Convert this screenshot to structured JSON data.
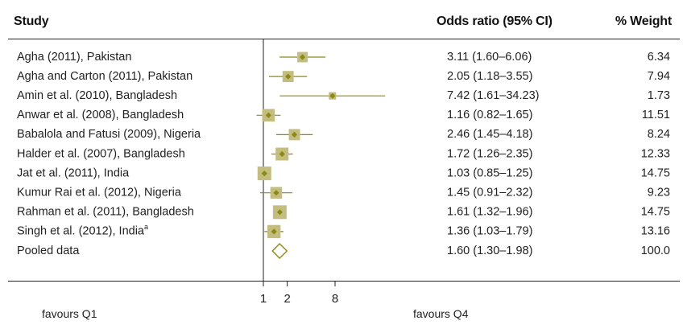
{
  "chart_data": {
    "type": "forest",
    "columns": {
      "study": "Study",
      "or": "Odds ratio (95% CI)",
      "weight": "% Weight"
    },
    "scale": "log",
    "xlim": [
      0.75,
      40
    ],
    "ticks": [
      1,
      2,
      8
    ],
    "tick_labels": [
      "1",
      "2",
      "8"
    ],
    "studies": [
      {
        "label": "Agha (2011), Pakistan",
        "or": 3.11,
        "lo": 1.6,
        "hi": 6.06,
        "ci_text": "3.11 (1.60–6.06)",
        "weight": 6.34,
        "weight_text": "6.34"
      },
      {
        "label": "Agha and Carton (2011), Pakistan",
        "or": 2.05,
        "lo": 1.18,
        "hi": 3.55,
        "ci_text": "2.05 (1.18–3.55)",
        "weight": 7.94,
        "weight_text": "7.94"
      },
      {
        "label": "Amin et al. (2010), Bangladesh",
        "or": 7.42,
        "lo": 1.61,
        "hi": 34.23,
        "ci_text": "7.42 (1.61–34.23)",
        "weight": 1.73,
        "weight_text": "1.73"
      },
      {
        "label": "Anwar et al. (2008), Bangladesh",
        "or": 1.16,
        "lo": 0.82,
        "hi": 1.65,
        "ci_text": "1.16 (0.82–1.65)",
        "weight": 11.51,
        "weight_text": "11.51"
      },
      {
        "label": "Babalola and Fatusi (2009), Nigeria",
        "or": 2.46,
        "lo": 1.45,
        "hi": 4.18,
        "ci_text": "2.46 (1.45–4.18)",
        "weight": 8.24,
        "weight_text": "8.24"
      },
      {
        "label": "Halder et al. (2007), Bangladesh",
        "or": 1.72,
        "lo": 1.26,
        "hi": 2.35,
        "ci_text": "1.72 (1.26–2.35)",
        "weight": 12.33,
        "weight_text": "12.33"
      },
      {
        "label": "Jat et al. (2011), India",
        "or": 1.03,
        "lo": 0.85,
        "hi": 1.25,
        "ci_text": "1.03 (0.85–1.25)",
        "weight": 14.75,
        "weight_text": "14.75"
      },
      {
        "label": "Kumur Rai et al. (2012), Nigeria",
        "or": 1.45,
        "lo": 0.91,
        "hi": 2.32,
        "ci_text": "1.45 (0.91–2.32)",
        "weight": 9.23,
        "weight_text": "9.23"
      },
      {
        "label": "Rahman et al. (2011), Bangladesh",
        "or": 1.61,
        "lo": 1.32,
        "hi": 1.96,
        "ci_text": "1.61 (1.32–1.96)",
        "weight": 14.75,
        "weight_text": "14.75"
      },
      {
        "label": "Singh et al. (2012), India",
        "superscript": "a",
        "or": 1.36,
        "lo": 1.03,
        "hi": 1.79,
        "ci_text": "1.36 (1.03–1.79)",
        "weight": 13.16,
        "weight_text": "13.16"
      }
    ],
    "pooled": {
      "label": "Pooled data",
      "or": 1.6,
      "lo": 1.3,
      "hi": 1.98,
      "ci_text": "1.60 (1.30–1.98)",
      "weight_text": "100.0"
    },
    "favours_left": "favours Q1",
    "favours_right": "favours Q4",
    "colors": {
      "marker": "#8b8a14",
      "box": "#c4bd80",
      "line": "#8b8a14",
      "axis": "#222222"
    }
  }
}
